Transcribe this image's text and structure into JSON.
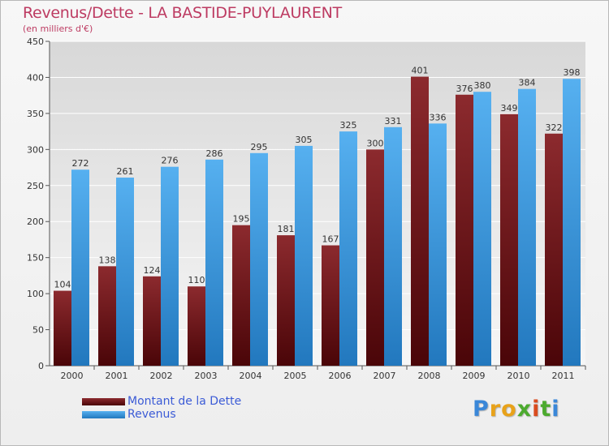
{
  "title": "Revenus/Dette - LA BASTIDE-PUYLAURENT",
  "subtitle": "(en milliers d'€)",
  "colors": {
    "dette": "#7a1a1e",
    "dette_dark": "#4a0508",
    "revenus": "#4aa3e6",
    "revenus_dark": "#2278be",
    "title": "#bd3b62",
    "legend_text": "#3b5bd6"
  },
  "legend": {
    "dette": "Montant de la Dette",
    "revenus": "Revenus"
  },
  "logo": {
    "letters": [
      "P",
      "r",
      "o",
      "x",
      "i",
      "t",
      "i"
    ],
    "colors": [
      "#3a87d8",
      "#e8a21a",
      "#e8a21a",
      "#4caa2e",
      "#d94b1e",
      "#4caa2e",
      "#3a87d8"
    ]
  },
  "chart_data": {
    "type": "bar",
    "categories": [
      "2000",
      "2001",
      "2002",
      "2003",
      "2004",
      "2005",
      "2006",
      "2007",
      "2008",
      "2009",
      "2010",
      "2011"
    ],
    "series": [
      {
        "name": "Montant de la Dette",
        "values": [
          104,
          138,
          124,
          110,
          195,
          181,
          167,
          300,
          401,
          376,
          349,
          322
        ]
      },
      {
        "name": "Revenus",
        "values": [
          272,
          261,
          276,
          286,
          295,
          305,
          325,
          331,
          336,
          380,
          384,
          398
        ]
      }
    ],
    "yticks": [
      0,
      50,
      100,
      150,
      200,
      250,
      300,
      350,
      400,
      450
    ],
    "ylim": [
      0,
      450
    ],
    "grid": true,
    "legend_position": "bottom-left"
  }
}
